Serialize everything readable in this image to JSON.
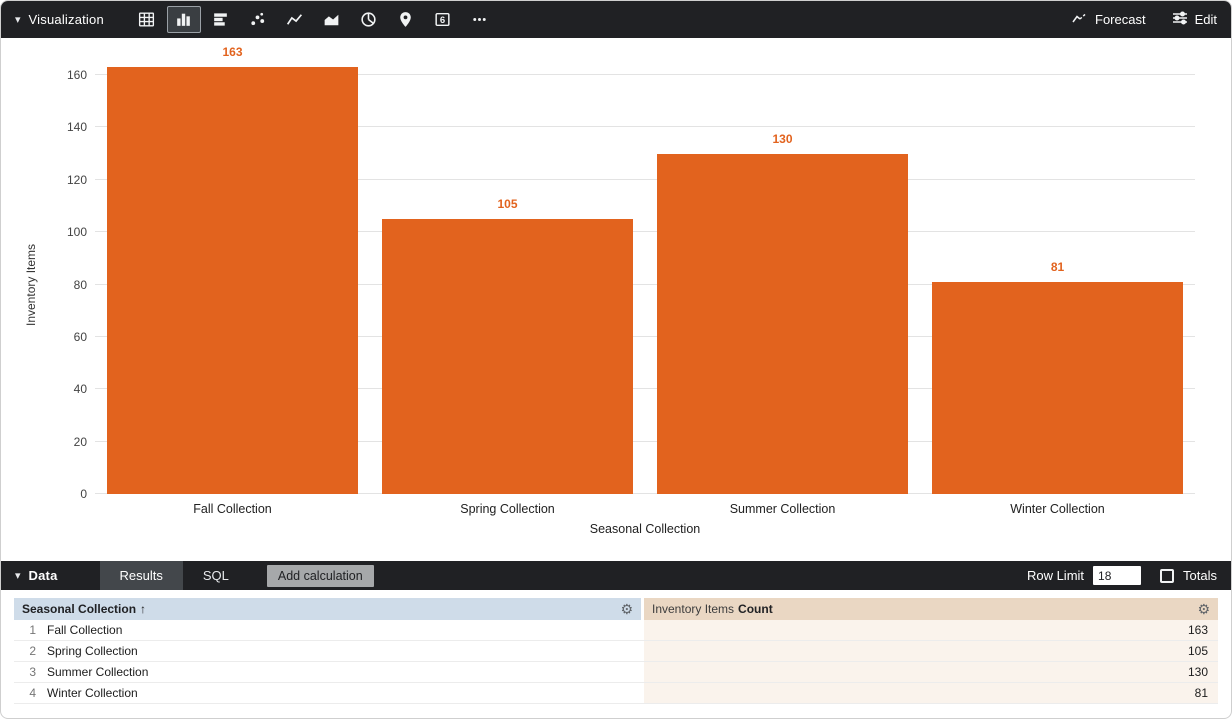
{
  "viz_bar": {
    "label": "Visualization",
    "icons": [
      "table-icon",
      "column-chart-icon",
      "bar-chart-icon",
      "scatter-icon",
      "line-chart-icon",
      "area-chart-icon",
      "pie-chart-icon",
      "map-icon",
      "single-value-icon",
      "more-icon"
    ],
    "selected_icon": "column-chart-icon",
    "single_value_glyph": "6",
    "forecast_label": "Forecast",
    "edit_label": "Edit"
  },
  "chart_data": {
    "type": "bar",
    "categories": [
      "Fall Collection",
      "Spring Collection",
      "Summer Collection",
      "Winter Collection"
    ],
    "values": [
      163,
      105,
      130,
      81
    ],
    "title": "",
    "xlabel": "Seasonal Collection",
    "ylabel": "Inventory Items",
    "ylim": [
      0,
      160
    ],
    "ytick_step": 20,
    "grid": true,
    "value_labels": true,
    "bar_color": "#E2631E"
  },
  "data_bar": {
    "label": "Data",
    "tabs": [
      {
        "label": "Results",
        "active": true
      },
      {
        "label": "SQL",
        "active": false
      }
    ],
    "add_calculation_label": "Add calculation",
    "row_limit_label": "Row Limit",
    "row_limit_value": "18",
    "totals_label": "Totals"
  },
  "table": {
    "columns": [
      {
        "label": "Seasonal Collection",
        "sort_indicator": "↑"
      },
      {
        "dimension_label": "Inventory Items",
        "measure_label": "Count"
      }
    ],
    "rows": [
      {
        "index": "1",
        "dimension": "Fall Collection",
        "value": "163"
      },
      {
        "index": "2",
        "dimension": "Spring Collection",
        "value": "105"
      },
      {
        "index": "3",
        "dimension": "Summer Collection",
        "value": "130"
      },
      {
        "index": "4",
        "dimension": "Winter Collection",
        "value": "81"
      }
    ]
  },
  "colors": {
    "accent_orange": "#E2631E",
    "bar_dark": "#202124",
    "header_dimension_bg": "#CFDCE9",
    "header_measure_bg": "#EAD7C3",
    "measure_cell_bg": "#FAF3EC"
  }
}
